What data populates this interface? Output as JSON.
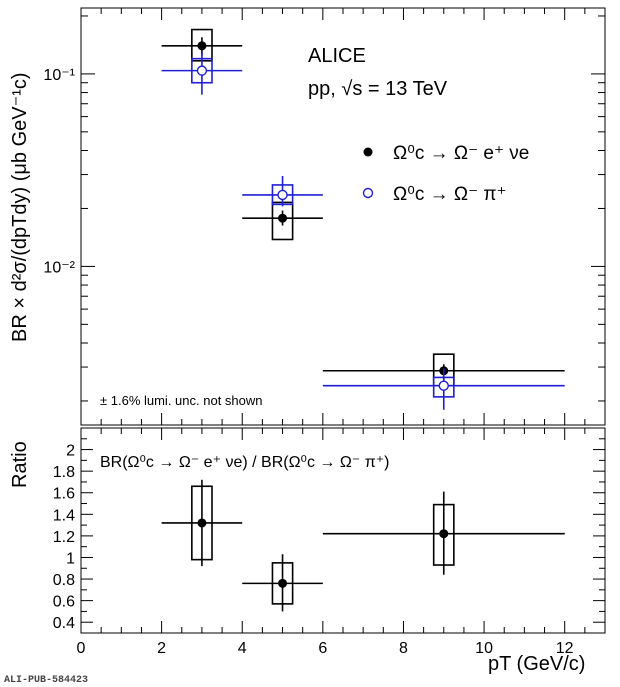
{
  "figure_id": "ALI-PUB-584423",
  "colors": {
    "black": "#000000",
    "blue": "#1f1fd6"
  },
  "chart_data": [
    {
      "panel": "top",
      "type": "scatter",
      "scale_y": "log",
      "xlim": [
        0,
        13
      ],
      "ylim": [
        0.0015,
        0.22
      ],
      "ylabel": "BR × d²σ/(dpTdy) (μb GeV⁻¹c)",
      "x_ticks_labeled": false,
      "y_tick_labels": [
        "10⁻²",
        "10⁻¹"
      ],
      "annotations": {
        "experiment": "ALICE",
        "system": "pp, √s = 13 TeV",
        "lumi_note": "± 1.6% lumi. unc. not shown"
      },
      "legend_position": "top-right",
      "series": [
        {
          "name": "Ω⁰c → Ω⁻ e⁺ νe",
          "marker": "filled-circle",
          "color": "#000000",
          "points": [
            {
              "x": 3,
              "xlow": 2,
              "xhigh": 4,
              "y": 0.14,
              "stat_low": 0.125,
              "stat_high": 0.155,
              "sys_low": 0.117,
              "sys_high": 0.17
            },
            {
              "x": 5,
              "xlow": 4,
              "xhigh": 6,
              "y": 0.0178,
              "stat_low": 0.0163,
              "stat_high": 0.0195,
              "sys_low": 0.0138,
              "sys_high": 0.0215
            },
            {
              "x": 9,
              "xlow": 6,
              "xhigh": 12,
              "y": 0.00287,
              "stat_low": 0.00255,
              "stat_high": 0.0031,
              "sys_low": 0.0024,
              "sys_high": 0.0035
            }
          ]
        },
        {
          "name": "Ω⁰c → Ω⁻ π⁺",
          "marker": "open-circle",
          "color": "#1f1fd6",
          "points": [
            {
              "x": 3,
              "xlow": 2,
              "xhigh": 4,
              "y": 0.104,
              "stat_low": 0.078,
              "stat_high": 0.13,
              "sys_low": 0.09,
              "sys_high": 0.12
            },
            {
              "x": 5,
              "xlow": 4,
              "xhigh": 6,
              "y": 0.0235,
              "stat_low": 0.0205,
              "stat_high": 0.0295,
              "sys_low": 0.021,
              "sys_high": 0.0265
            },
            {
              "x": 9,
              "xlow": 6,
              "xhigh": 12,
              "y": 0.0024,
              "stat_low": 0.0018,
              "stat_high": 0.00295,
              "sys_low": 0.0021,
              "sys_high": 0.00265
            }
          ]
        }
      ]
    },
    {
      "panel": "bottom",
      "type": "scatter",
      "xlim": [
        0,
        13
      ],
      "ylim": [
        0.3,
        2.2
      ],
      "xlabel": "pT (GeV/c)",
      "ylabel": "Ratio",
      "x_tick_labels": [
        "0",
        "2",
        "4",
        "6",
        "8",
        "10",
        "12"
      ],
      "y_tick_labels": [
        "0.4",
        "0.6",
        "0.8",
        "1",
        "1.2",
        "1.4",
        "1.6",
        "1.8",
        "2"
      ],
      "annotation": "BR(Ω⁰c → Ω⁻ e⁺ νe) / BR(Ω⁰c → Ω⁻ π⁺)",
      "series": [
        {
          "marker": "filled-circle",
          "color": "#000000",
          "points": [
            {
              "x": 3,
              "xlow": 2,
              "xhigh": 4,
              "y": 1.32,
              "stat_low": 0.92,
              "stat_high": 1.72,
              "sys_low": 0.98,
              "sys_high": 1.66
            },
            {
              "x": 5,
              "xlow": 4,
              "xhigh": 6,
              "y": 0.76,
              "stat_low": 0.5,
              "stat_high": 1.03,
              "sys_low": 0.57,
              "sys_high": 0.95
            },
            {
              "x": 9,
              "xlow": 6,
              "xhigh": 12,
              "y": 1.22,
              "stat_low": 0.84,
              "stat_high": 1.61,
              "sys_low": 0.93,
              "sys_high": 1.49
            }
          ]
        }
      ]
    }
  ]
}
